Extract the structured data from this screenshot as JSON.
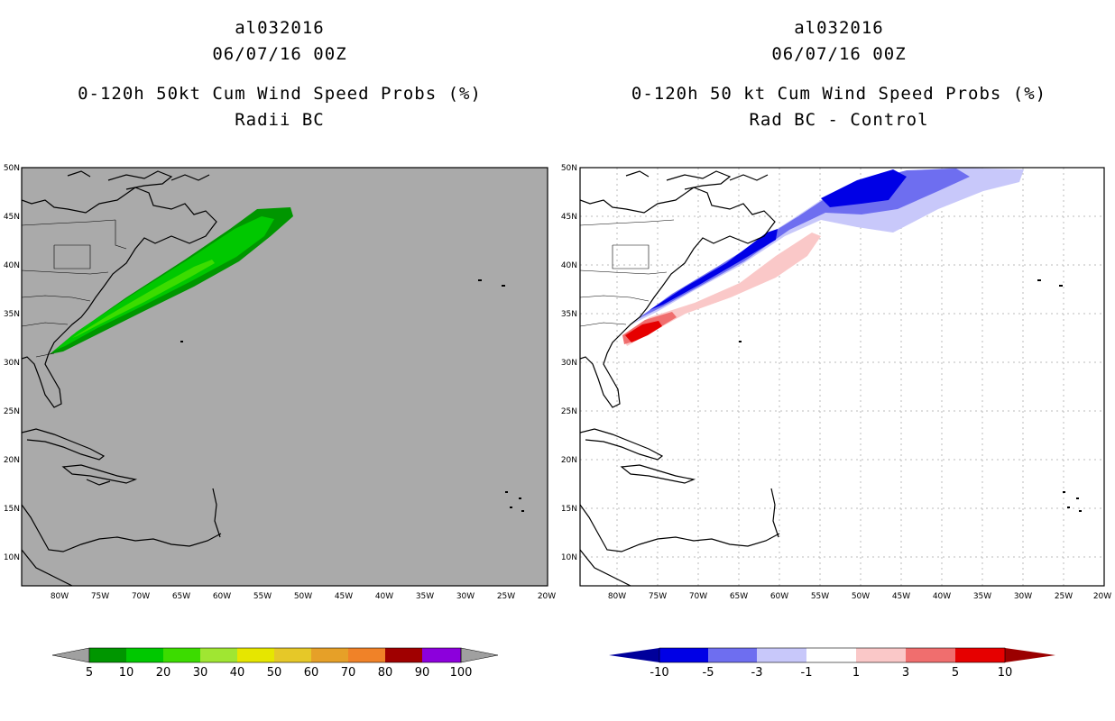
{
  "left_panel": {
    "storm_id": "al032016",
    "datetime": "06/07/16 00Z",
    "title": "0-120h 50kt Cum Wind Speed Probs (%)",
    "subtitle": "Radii BC",
    "background_color": "#aaaaaa",
    "colorbar": {
      "labels": [
        "5",
        "10",
        "20",
        "30",
        "40",
        "50",
        "60",
        "70",
        "80",
        "90",
        "100"
      ],
      "colors": [
        "#009600",
        "#00c800",
        "#3cdc00",
        "#a0e632",
        "#e6e600",
        "#e6c828",
        "#e6a028",
        "#f08228",
        "#f03c3c",
        "#a00000",
        "#8c00dc",
        "#a0a0a0"
      ]
    }
  },
  "right_panel": {
    "storm_id": "al032016",
    "datetime": "06/07/16 00Z",
    "title": "0-120h 50 kt Cum Wind Speed Probs (%)",
    "subtitle": "Rad BC - Control",
    "background_color": "#ffffff",
    "colorbar": {
      "labels": [
        "-10",
        "-5",
        "-3",
        "-1",
        "1",
        "3",
        "5",
        "10"
      ],
      "colors": [
        "#00009b",
        "#0000e6",
        "#6e6ef0",
        "#c8c8fa",
        "#ffffff",
        "#fac8c8",
        "#f06e6e",
        "#e60000",
        "#9b0000"
      ]
    }
  },
  "lat_labels": [
    "50N",
    "45N",
    "40N",
    "35N",
    "30N",
    "25N",
    "20N",
    "15N",
    "10N"
  ],
  "lon_labels": [
    "80W",
    "75W",
    "70W",
    "65W",
    "60W",
    "55W",
    "50W",
    "45W",
    "40W",
    "35W",
    "30W",
    "25W",
    "20W"
  ]
}
